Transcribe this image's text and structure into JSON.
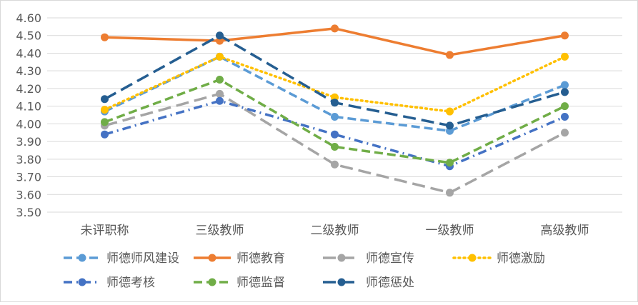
{
  "chart_data": {
    "type": "line",
    "title": "",
    "xlabel": "",
    "ylabel": "",
    "ylim": [
      3.5,
      4.6
    ],
    "ytick_step": 0.1,
    "ytick_labels": [
      "3.50",
      "3.60",
      "3.70",
      "3.80",
      "3.90",
      "4.00",
      "4.10",
      "4.20",
      "4.30",
      "4.40",
      "4.50",
      "4.60"
    ],
    "grid": true,
    "legend_position": "bottom",
    "categories": [
      "未评职称",
      "三级教师",
      "二级教师",
      "一级教师",
      "高级教师"
    ],
    "series": [
      {
        "name": "师德师风建设",
        "values": [
          4.07,
          4.38,
          4.04,
          3.96,
          4.22
        ],
        "color": "#5B9BD5",
        "dash": "dash"
      },
      {
        "name": "师德教育",
        "values": [
          4.49,
          4.47,
          4.54,
          4.39,
          4.5
        ],
        "color": "#ED7D31",
        "dash": "solid"
      },
      {
        "name": "师德宣传",
        "values": [
          3.99,
          4.17,
          3.77,
          3.61,
          3.95
        ],
        "color": "#A5A5A5",
        "dash": "longdash"
      },
      {
        "name": "师德激励",
        "values": [
          4.08,
          4.38,
          4.15,
          4.07,
          4.38
        ],
        "color": "#FFC000",
        "dash": "dot"
      },
      {
        "name": "师德考核",
        "values": [
          3.94,
          4.13,
          3.94,
          3.76,
          4.04
        ],
        "color": "#4472C4",
        "dash": "dashdot"
      },
      {
        "name": "师德监督",
        "values": [
          4.01,
          4.25,
          3.87,
          3.78,
          4.1
        ],
        "color": "#70AD47",
        "dash": "dash"
      },
      {
        "name": "师德惩处",
        "values": [
          4.14,
          4.5,
          4.12,
          3.99,
          4.18
        ],
        "color": "#255E91",
        "dash": "longdash"
      }
    ]
  }
}
